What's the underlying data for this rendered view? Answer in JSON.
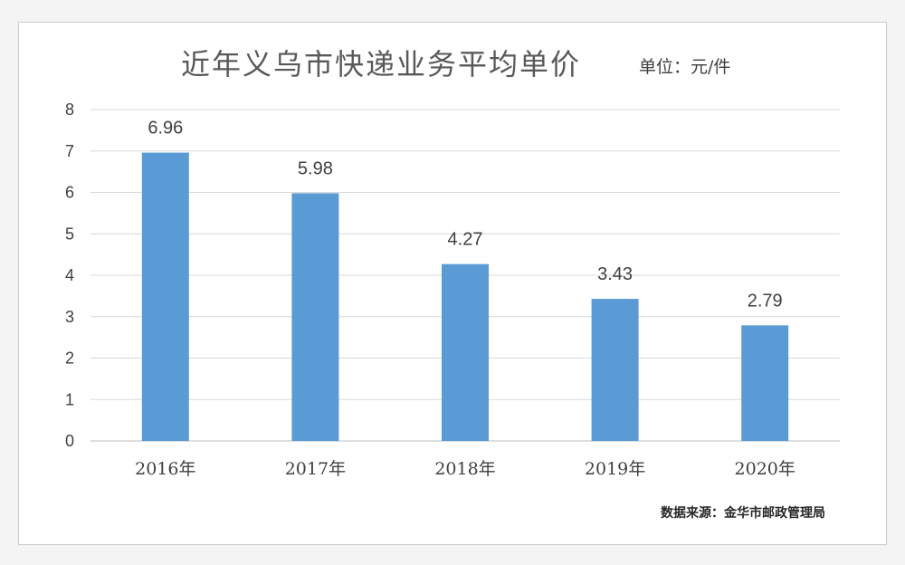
{
  "chart_data": {
    "type": "bar",
    "title": "近年义乌市快递业务平均单价",
    "unit": "单位：元/件",
    "source": "数据来源：金华市邮政管理局",
    "categories": [
      "2016年",
      "2017年",
      "2018年",
      "2019年",
      "2020年"
    ],
    "values": [
      6.96,
      5.98,
      4.27,
      3.43,
      2.79
    ],
    "value_labels": [
      "6.96",
      "5.98",
      "4.27",
      "3.43",
      "2.79"
    ],
    "yticks": [
      "0",
      "1",
      "2",
      "3",
      "4",
      "5",
      "6",
      "7",
      "8"
    ],
    "ylim": [
      0,
      8
    ],
    "xlabel": "",
    "ylabel": "",
    "grid": true,
    "bar_color": "#5b9bd5",
    "grid_color": "#d9d9d9"
  }
}
